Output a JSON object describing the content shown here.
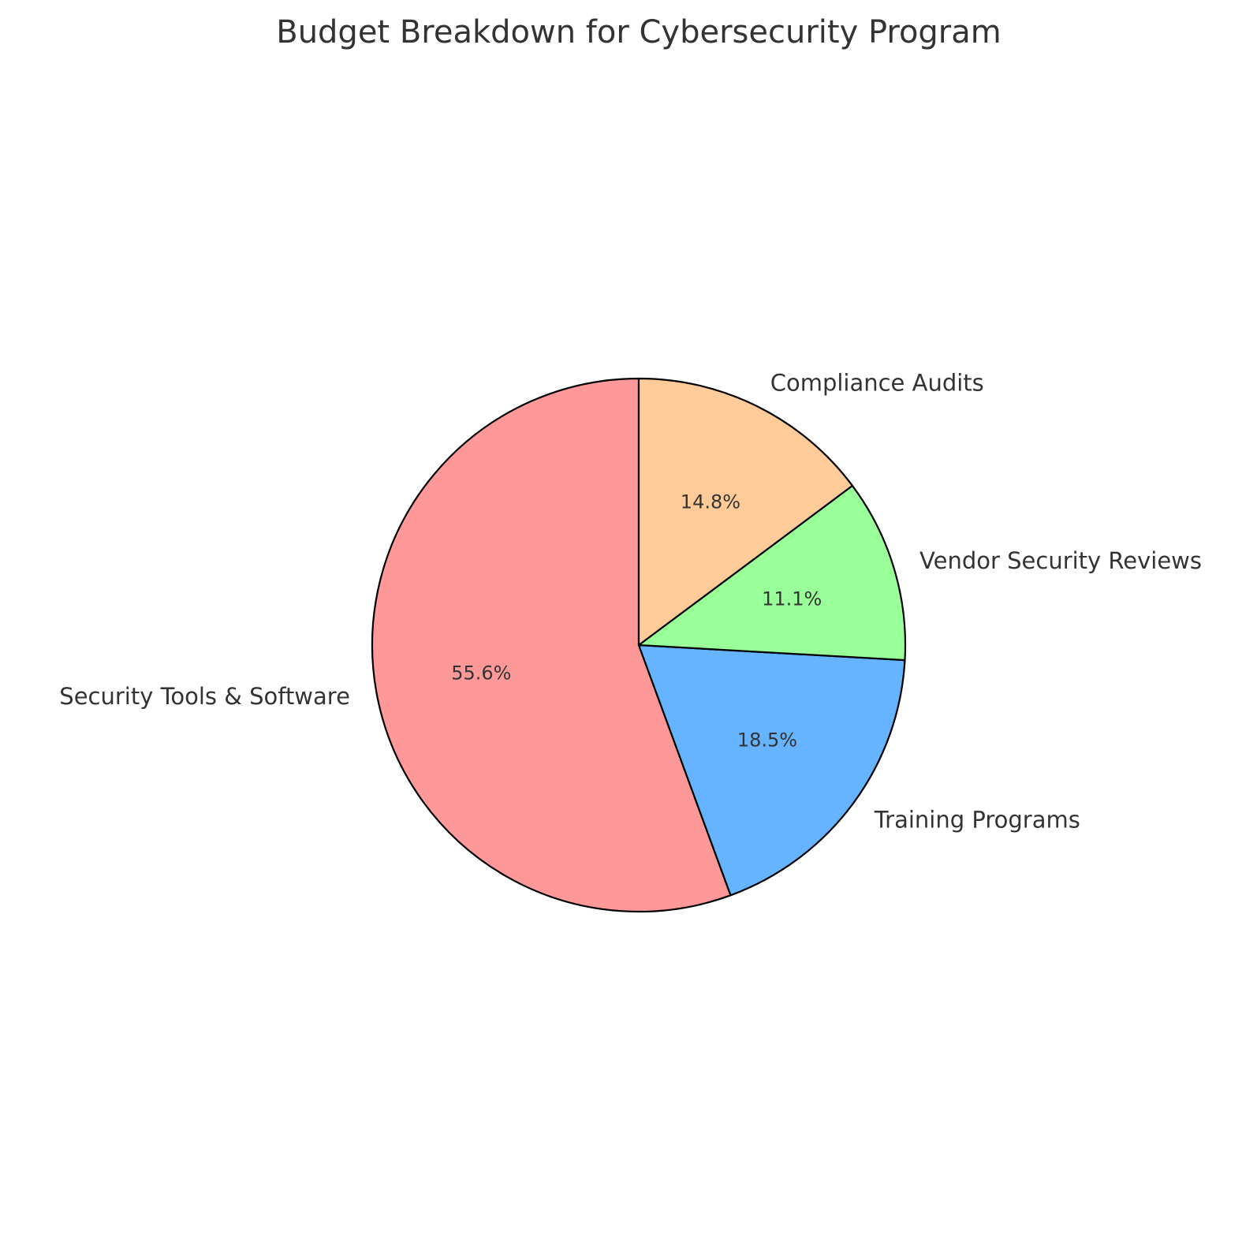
{
  "chart_data": {
    "type": "pie",
    "title": "Budget Breakdown for Cybersecurity Program",
    "categories": [
      "Security Tools & Software",
      "Training Programs",
      "Vendor Security Reviews",
      "Compliance Audits"
    ],
    "values": [
      55.6,
      18.5,
      11.1,
      14.8
    ],
    "value_labels": [
      "55.6%",
      "18.5%",
      "11.1%",
      "14.8%"
    ],
    "colors": [
      "#ff9999",
      "#66b3ff",
      "#99ff99",
      "#ffcc99"
    ],
    "start_angle_deg": 90,
    "direction": "counterclockwise",
    "edge_color": "#000000"
  }
}
